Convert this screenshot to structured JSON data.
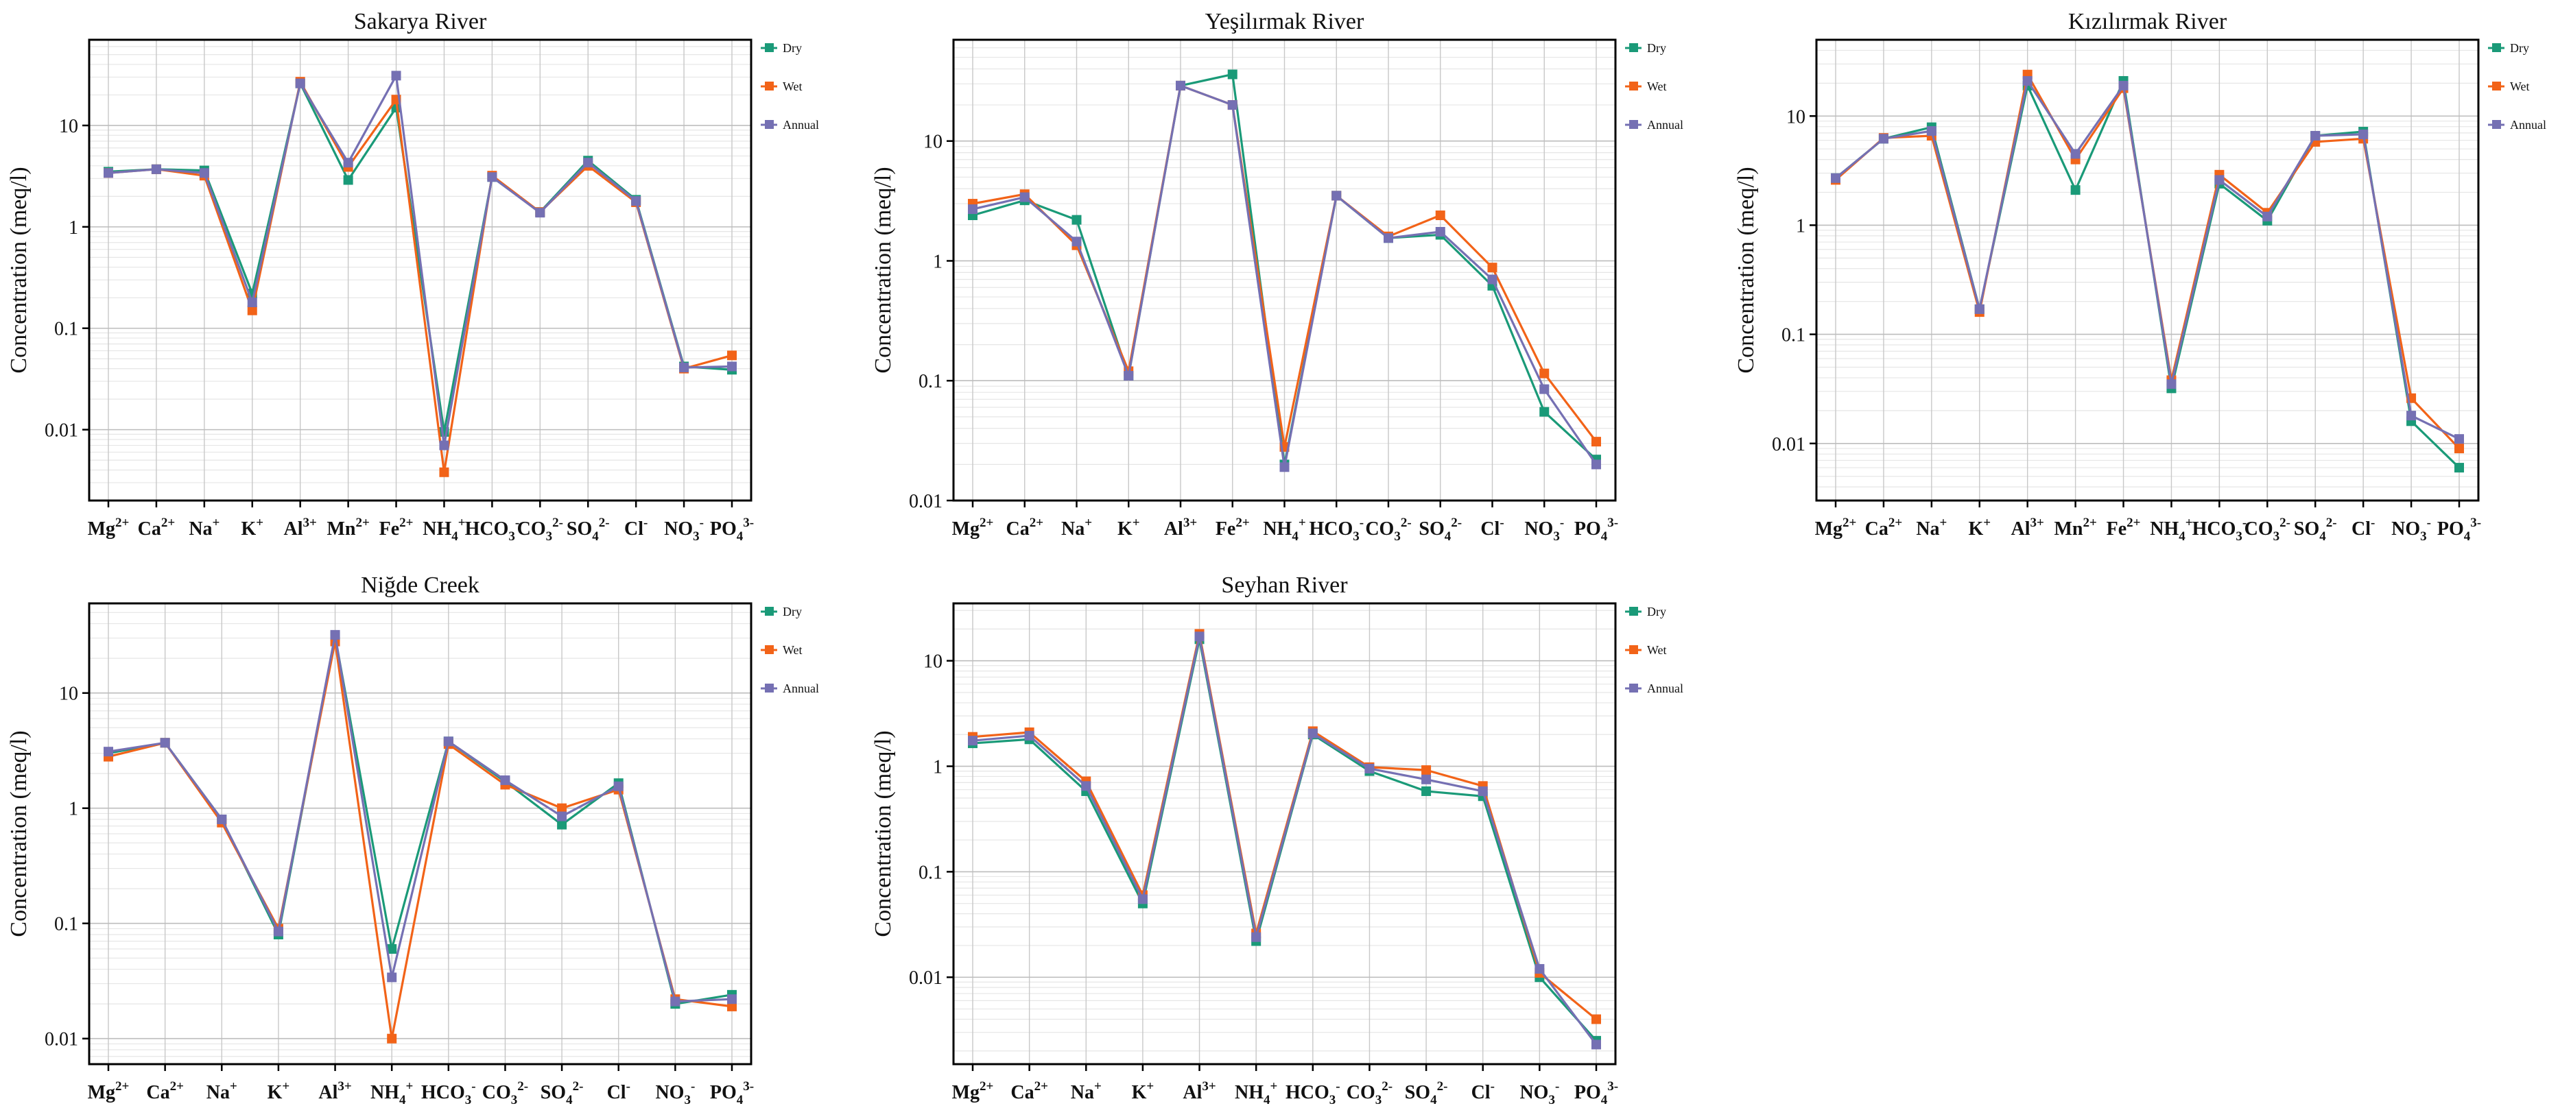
{
  "figure": {
    "ylabel": "Concentration (meq/l)"
  },
  "colors": {
    "Dry": "#1a9a78",
    "Wet": "#f26318",
    "Annual": "#7570b3"
  },
  "chart_data": [
    {
      "type": "line",
      "yscale": "log",
      "title": "Sakarya River",
      "ylabel": "Concentration (meq/l)",
      "ylim": [
        0.002,
        70
      ],
      "yticks": [
        "0.01",
        "0.1",
        "1",
        "10"
      ],
      "categories": [
        "Mg2+",
        "Ca2+",
        "Na+",
        "K+",
        "Al3+",
        "Mn2+",
        "Fe2+",
        "NH4+",
        "HCO3-",
        "CO32-",
        "SO42-",
        "Cl-",
        "NO3-",
        "PO43-"
      ],
      "series": [
        {
          "name": "Dry",
          "values": [
            3.5,
            3.7,
            3.6,
            0.22,
            26,
            2.9,
            15,
            0.0095,
            3.1,
            1.4,
            4.5,
            1.85,
            0.042,
            0.039
          ]
        },
        {
          "name": "Wet",
          "values": [
            3.4,
            3.7,
            3.2,
            0.15,
            27,
            3.9,
            18,
            0.0038,
            3.2,
            1.4,
            4.0,
            1.75,
            0.04,
            0.054
          ]
        },
        {
          "name": "Annual",
          "values": [
            3.4,
            3.7,
            3.4,
            0.18,
            26,
            4.3,
            31,
            0.007,
            3.1,
            1.38,
            4.3,
            1.8,
            0.041,
            0.042
          ]
        }
      ],
      "legend": "right"
    },
    {
      "type": "line",
      "yscale": "log",
      "title": "Yeşilırmak River",
      "ylabel": "Concentration (meq/l)",
      "ylim": [
        0.01,
        70
      ],
      "yticks": [
        "0.01",
        "0.1",
        "1",
        "10"
      ],
      "categories": [
        "Mg2+",
        "Ca2+",
        "Na+",
        "K+",
        "Al3+",
        "Fe2+",
        "NH4+",
        "HCO3-",
        "CO32-",
        "SO42-",
        "Cl-",
        "NO3-",
        "PO43-"
      ],
      "series": [
        {
          "name": "Dry",
          "values": [
            2.4,
            3.2,
            2.2,
            0.11,
            29,
            36,
            0.02,
            3.5,
            1.55,
            1.65,
            0.62,
            0.055,
            0.022
          ]
        },
        {
          "name": "Wet",
          "values": [
            3.0,
            3.6,
            1.35,
            0.12,
            29,
            20,
            0.028,
            3.5,
            1.6,
            2.4,
            0.88,
            0.115,
            0.031
          ]
        },
        {
          "name": "Annual",
          "values": [
            2.7,
            3.4,
            1.45,
            0.11,
            29,
            20,
            0.019,
            3.5,
            1.55,
            1.75,
            0.7,
            0.085,
            0.02
          ]
        }
      ],
      "legend": "right"
    },
    {
      "type": "line",
      "yscale": "log",
      "title": "Kızılırmak River",
      "ylabel": "Concentration (meq/l)",
      "ylim": [
        0.003,
        50
      ],
      "yticks": [
        "0.01",
        "0.1",
        "1",
        "10"
      ],
      "categories": [
        "Mg2+",
        "Ca2+",
        "Na+",
        "K+",
        "Al3+",
        "Mn2+",
        "Fe2+",
        "NH4+",
        "HCO3-",
        "CO32-",
        "SO42-",
        "Cl-",
        "NO3-",
        "PO43-"
      ],
      "series": [
        {
          "name": "Dry",
          "values": [
            2.7,
            6.2,
            7.9,
            0.17,
            19,
            2.1,
            21,
            0.032,
            2.4,
            1.1,
            6.6,
            7.2,
            0.016,
            0.006
          ]
        },
        {
          "name": "Wet",
          "values": [
            2.6,
            6.3,
            6.6,
            0.16,
            24,
            4.0,
            18,
            0.038,
            2.9,
            1.3,
            5.8,
            6.2,
            0.026,
            0.009
          ]
        },
        {
          "name": "Annual",
          "values": [
            2.7,
            6.2,
            7.3,
            0.17,
            21,
            4.5,
            19,
            0.035,
            2.6,
            1.2,
            6.6,
            6.8,
            0.018,
            0.011
          ]
        }
      ],
      "legend": "right"
    },
    {
      "type": "line",
      "yscale": "log",
      "title": "Niğde Creek",
      "ylabel": "Concentration (meq/l)",
      "ylim": [
        0.006,
        60
      ],
      "yticks": [
        "0.01",
        "0.1",
        "1",
        "10"
      ],
      "categories": [
        "Mg2+",
        "Ca2+",
        "Na+",
        "K+",
        "Al3+",
        "NH4+",
        "HCO3-",
        "CO32-",
        "SO42-",
        "Cl-",
        "NO3-",
        "PO43-"
      ],
      "series": [
        {
          "name": "Dry",
          "values": [
            3.0,
            3.7,
            0.8,
            0.08,
            31,
            0.06,
            3.8,
            1.7,
            0.72,
            1.65,
            0.02,
            0.024
          ]
        },
        {
          "name": "Wet",
          "values": [
            2.8,
            3.7,
            0.75,
            0.09,
            28,
            0.01,
            3.6,
            1.6,
            1.0,
            1.45,
            0.022,
            0.019
          ]
        },
        {
          "name": "Annual",
          "values": [
            3.1,
            3.7,
            0.8,
            0.085,
            32,
            0.034,
            3.8,
            1.75,
            0.85,
            1.55,
            0.021,
            0.022
          ]
        }
      ],
      "legend": "right"
    },
    {
      "type": "line",
      "yscale": "log",
      "title": "Seyhan River",
      "ylabel": "Concentration (meq/l)",
      "ylim": [
        0.0015,
        35
      ],
      "yticks": [
        "0.01",
        "0.1",
        "1",
        "10"
      ],
      "categories": [
        "Mg2+",
        "Ca2+",
        "Na+",
        "K+",
        "Al3+",
        "NH4+",
        "HCO3-",
        "CO32-",
        "SO42-",
        "Cl-",
        "NO3-",
        "PO43-"
      ],
      "series": [
        {
          "name": "Dry",
          "values": [
            1.65,
            1.8,
            0.58,
            0.05,
            16,
            0.022,
            2.0,
            0.9,
            0.58,
            0.52,
            0.01,
            0.0025
          ]
        },
        {
          "name": "Wet",
          "values": [
            1.9,
            2.1,
            0.72,
            0.06,
            18,
            0.026,
            2.15,
            0.98,
            0.92,
            0.65,
            0.011,
            0.004
          ]
        },
        {
          "name": "Annual",
          "values": [
            1.75,
            1.95,
            0.65,
            0.055,
            17,
            0.024,
            2.05,
            0.95,
            0.75,
            0.58,
            0.012,
            0.0023
          ]
        }
      ],
      "legend": "right"
    }
  ]
}
